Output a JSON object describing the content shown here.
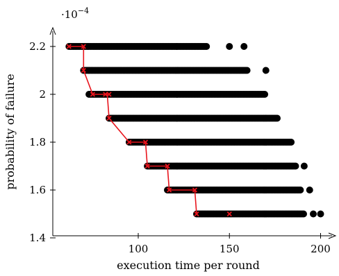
{
  "chart_data": {
    "type": "scatter",
    "xlabel": "execution time per round",
    "ylabel": "probability of failure",
    "y_multiplier_label": "·10",
    "y_multiplier_exponent": "−4",
    "xlim": [
      55,
      205
    ],
    "ylim": [
      1.4,
      2.3
    ],
    "xticks": [
      100,
      150,
      200
    ],
    "yticks": [
      1.4,
      1.6,
      1.8,
      2.0,
      2.2
    ],
    "ytick_labels": [
      "1.4",
      "1.6",
      "1.8",
      "2",
      "2.2"
    ],
    "grid": false,
    "point_color": "#000000",
    "front_color": "#e8141c",
    "levels": [
      {
        "y": 2.2,
        "x_start": 62,
        "x_end": 145,
        "dense_end": 138,
        "outliers": [
          150,
          158
        ]
      },
      {
        "y": 2.1,
        "x_start": 70,
        "x_end": 165,
        "dense_end": 160,
        "outliers": [
          170
        ]
      },
      {
        "y": 2.0,
        "x_start": 73,
        "x_end": 165,
        "dense_end": 170,
        "outliers": []
      },
      {
        "y": 1.9,
        "x_start": 84,
        "x_end": 178,
        "dense_end": 177,
        "outliers": []
      },
      {
        "y": 1.8,
        "x_start": 95,
        "x_end": 183,
        "dense_end": 184,
        "outliers": []
      },
      {
        "y": 1.7,
        "x_start": 105,
        "x_end": 188,
        "dense_end": 187,
        "outliers": [
          191
        ]
      },
      {
        "y": 1.6,
        "x_start": 116,
        "x_end": 190,
        "dense_end": 189,
        "outliers": [
          194
        ]
      },
      {
        "y": 1.5,
        "x_start": 132,
        "x_end": 192,
        "dense_end": 191,
        "outliers": [
          196,
          200
        ]
      }
    ],
    "pareto_front": [
      {
        "x": 62,
        "y": 2.2
      },
      {
        "x": 70,
        "y": 2.2
      },
      {
        "x": 70,
        "y": 2.1
      },
      {
        "x": 75,
        "y": 2.0
      },
      {
        "x": 83,
        "y": 2.0
      },
      {
        "x": 84,
        "y": 1.9
      },
      {
        "x": 95,
        "y": 1.8
      },
      {
        "x": 104,
        "y": 1.8
      },
      {
        "x": 105,
        "y": 1.7
      },
      {
        "x": 116,
        "y": 1.7
      },
      {
        "x": 117,
        "y": 1.6
      },
      {
        "x": 131,
        "y": 1.6
      },
      {
        "x": 132,
        "y": 1.5
      }
    ],
    "highlight_points": [
      {
        "x": 62,
        "y": 2.2
      },
      {
        "x": 70,
        "y": 2.2
      },
      {
        "x": 70,
        "y": 2.1
      },
      {
        "x": 75,
        "y": 2.0
      },
      {
        "x": 82,
        "y": 2.0
      },
      {
        "x": 84,
        "y": 2.0
      },
      {
        "x": 84,
        "y": 1.9
      },
      {
        "x": 95,
        "y": 1.8
      },
      {
        "x": 104,
        "y": 1.8
      },
      {
        "x": 105,
        "y": 1.7
      },
      {
        "x": 116,
        "y": 1.7
      },
      {
        "x": 117,
        "y": 1.6
      },
      {
        "x": 131,
        "y": 1.6
      },
      {
        "x": 132,
        "y": 1.5
      },
      {
        "x": 150,
        "y": 1.5
      }
    ]
  }
}
